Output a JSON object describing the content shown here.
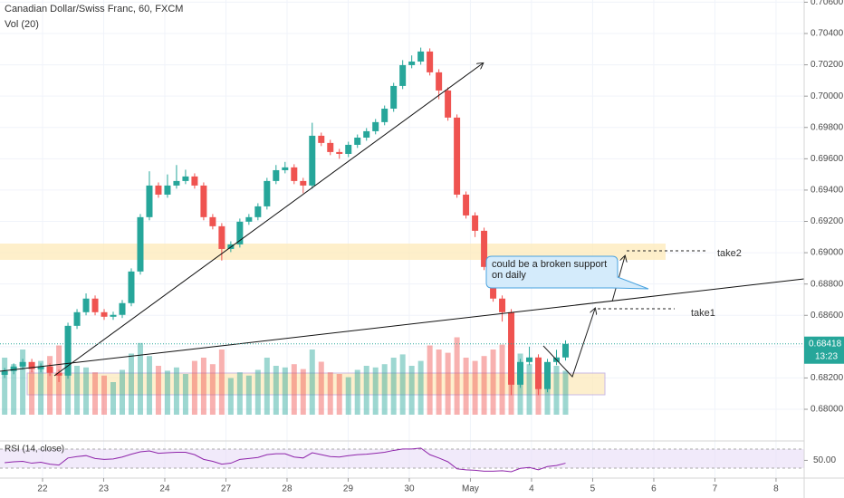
{
  "chart_data": {
    "type": "candlestick",
    "title": "Canadian Dollar/Swiss Franc, 60, FXCM",
    "volume_label": "Vol (20)",
    "rsi_label": "RSI (14, close)",
    "annotation": "could be a broken support on daily",
    "targets": [
      "take1",
      "take2"
    ],
    "last_price": {
      "value": 0.68418,
      "label": "0.68418"
    },
    "countdown": "13:23",
    "up_color": "#26a69a",
    "down_color": "#ef5350",
    "rsi_color": "#8e24aa",
    "grid": true,
    "xlim": [
      0.304,
      13.46
    ],
    "xticks": [
      {
        "value": 1,
        "label": "22"
      },
      {
        "value": 2,
        "label": "23"
      },
      {
        "value": 3,
        "label": "24"
      },
      {
        "value": 4,
        "label": "27"
      },
      {
        "value": 5,
        "label": "28"
      },
      {
        "value": 6,
        "label": "29"
      },
      {
        "value": 7,
        "label": "30"
      },
      {
        "value": 8,
        "label": "May"
      },
      {
        "value": 9,
        "label": "4"
      },
      {
        "value": 10,
        "label": "5"
      },
      {
        "value": 11,
        "label": "6"
      },
      {
        "value": 12,
        "label": "7"
      },
      {
        "value": 13,
        "label": "8"
      }
    ],
    "ylim": [
      0.67896,
      0.70614
    ],
    "yticks": [
      {
        "value": 0.706,
        "label": "0.70600"
      },
      {
        "value": 0.704,
        "label": "0.70400"
      },
      {
        "value": 0.702,
        "label": "0.70200"
      },
      {
        "value": 0.7,
        "label": "0.70000"
      },
      {
        "value": 0.698,
        "label": "0.69800"
      },
      {
        "value": 0.696,
        "label": "0.69600"
      },
      {
        "value": 0.694,
        "label": "0.69400"
      },
      {
        "value": 0.692,
        "label": "0.69200"
      },
      {
        "value": 0.69,
        "label": "0.69000"
      },
      {
        "value": 0.688,
        "label": "0.68800"
      },
      {
        "value": 0.686,
        "label": "0.68600"
      },
      {
        "value": 0.684,
        "label": "0.68400"
      },
      {
        "value": 0.682,
        "label": "0.68200"
      },
      {
        "value": 0.68,
        "label": "0.68000"
      }
    ],
    "vol_ylim": [
      0,
      100
    ],
    "rsi_ylim": [
      24,
      91
    ],
    "rsi_yticks": [
      {
        "value": 50,
        "label": "50.00"
      }
    ],
    "x": [
      0.38,
      0.528,
      0.676,
      0.824,
      0.972,
      1.12,
      1.268,
      1.416,
      1.564,
      1.712,
      1.86,
      2.008,
      2.156,
      2.304,
      2.452,
      2.6,
      2.748,
      2.896,
      3.044,
      3.192,
      3.34,
      3.488,
      3.636,
      3.784,
      3.932,
      4.08,
      4.228,
      4.376,
      4.524,
      4.672,
      4.82,
      4.968,
      5.116,
      5.264,
      5.412,
      5.56,
      5.708,
      5.856,
      6.004,
      6.152,
      6.3,
      6.448,
      6.596,
      6.744,
      6.892,
      7.04,
      7.188,
      7.336,
      7.484,
      7.632,
      7.78,
      7.928,
      8.076,
      8.224,
      8.372,
      8.52,
      8.668,
      8.816,
      8.964,
      9.112,
      9.26,
      9.408,
      9.556
    ],
    "open": [
      0.6822,
      0.68244,
      0.68273,
      0.68302,
      0.68256,
      0.68273,
      0.68233,
      0.68215,
      0.68533,
      0.6862,
      0.68707,
      0.6862,
      0.68591,
      0.68603,
      0.68678,
      0.6888,
      0.69227,
      0.69429,
      0.69371,
      0.69429,
      0.69458,
      0.69487,
      0.69429,
      0.69227,
      0.69169,
      0.69024,
      0.69053,
      0.69198,
      0.69227,
      0.69296,
      0.69458,
      0.69527,
      0.69545,
      0.69458,
      0.69429,
      0.69747,
      0.69701,
      0.69643,
      0.69631,
      0.69689,
      0.69735,
      0.69776,
      0.69834,
      0.6992,
      0.70065,
      0.70198,
      0.70221,
      0.70285,
      0.70152,
      0.70036,
      0.69863,
      0.69371,
      0.69238,
      0.6914,
      0.68909,
      0.68707,
      0.6862,
      0.68157,
      0.68302,
      0.68331,
      0.68129,
      0.68302,
      0.68331
    ],
    "high": [
      0.68264,
      0.68293,
      0.68322,
      0.68322,
      0.68293,
      0.68293,
      0.68253,
      0.68553,
      0.6864,
      0.6874,
      0.68727,
      0.6864,
      0.68623,
      0.68698,
      0.689,
      0.69247,
      0.6952,
      0.69449,
      0.695,
      0.6956,
      0.6953,
      0.69507,
      0.69449,
      0.69247,
      0.69189,
      0.69073,
      0.69218,
      0.69247,
      0.69316,
      0.69478,
      0.6956,
      0.6958,
      0.69565,
      0.69478,
      0.6983,
      0.69767,
      0.69721,
      0.69663,
      0.69709,
      0.69755,
      0.69796,
      0.69854,
      0.6994,
      0.70085,
      0.7023,
      0.7026,
      0.7031,
      0.70305,
      0.70172,
      0.70056,
      0.69883,
      0.69391,
      0.69258,
      0.6916,
      0.68929,
      0.68727,
      0.6864,
      0.68322,
      0.684,
      0.68351,
      0.68322,
      0.6838,
      0.6844
    ],
    "low": [
      0.682,
      0.68224,
      0.68253,
      0.68236,
      0.68236,
      0.68213,
      0.68174,
      0.68195,
      0.68513,
      0.686,
      0.686,
      0.68571,
      0.68571,
      0.68583,
      0.68658,
      0.6886,
      0.69207,
      0.69351,
      0.69351,
      0.69409,
      0.69438,
      0.69409,
      0.69207,
      0.69149,
      0.6895,
      0.69004,
      0.69033,
      0.69178,
      0.69207,
      0.69276,
      0.69438,
      0.69507,
      0.69438,
      0.6938,
      0.69409,
      0.69681,
      0.69623,
      0.696,
      0.69611,
      0.69669,
      0.69715,
      0.69756,
      0.69814,
      0.699,
      0.70045,
      0.70178,
      0.70201,
      0.70132,
      0.6998,
      0.69843,
      0.69351,
      0.69218,
      0.691,
      0.68889,
      0.68687,
      0.6856,
      0.6809,
      0.68137,
      0.68282,
      0.6809,
      0.68109,
      0.68282,
      0.68311
    ],
    "close": [
      0.68244,
      0.68273,
      0.68302,
      0.68256,
      0.68273,
      0.68233,
      0.68215,
      0.68533,
      0.6862,
      0.68707,
      0.6862,
      0.68591,
      0.68603,
      0.68678,
      0.6888,
      0.69227,
      0.69429,
      0.69371,
      0.69429,
      0.69458,
      0.69487,
      0.69429,
      0.69227,
      0.69169,
      0.69024,
      0.69053,
      0.69198,
      0.69227,
      0.69296,
      0.69458,
      0.69527,
      0.69545,
      0.69458,
      0.69429,
      0.69747,
      0.69701,
      0.69643,
      0.69631,
      0.69689,
      0.69735,
      0.69776,
      0.69834,
      0.6992,
      0.70065,
      0.70198,
      0.70221,
      0.70285,
      0.70152,
      0.70036,
      0.69863,
      0.69371,
      0.69238,
      0.6914,
      0.68909,
      0.68707,
      0.6862,
      0.68157,
      0.68302,
      0.68331,
      0.68129,
      0.68302,
      0.68331,
      0.68418
    ],
    "volume": [
      70,
      62,
      80,
      55,
      66,
      72,
      85,
      90,
      60,
      58,
      52,
      48,
      40,
      55,
      75,
      88,
      72,
      60,
      54,
      58,
      50,
      66,
      70,
      62,
      80,
      45,
      52,
      48,
      55,
      70,
      60,
      58,
      62,
      56,
      80,
      65,
      52,
      50,
      46,
      55,
      60,
      58,
      62,
      70,
      74,
      60,
      66,
      85,
      80,
      76,
      95,
      70,
      66,
      72,
      80,
      86,
      98,
      75,
      62,
      70,
      58,
      60,
      54
    ],
    "rsi": [
      45,
      47,
      48,
      44,
      46,
      42,
      40,
      55,
      58,
      60,
      54,
      52,
      53,
      57,
      63,
      68,
      70,
      65,
      66,
      67,
      67,
      62,
      52,
      48,
      42,
      44,
      52,
      54,
      56,
      62,
      64,
      64,
      57,
      55,
      66,
      62,
      58,
      57,
      60,
      62,
      63,
      65,
      67,
      71,
      74,
      74,
      76,
      62,
      55,
      47,
      32,
      30,
      29,
      27,
      27,
      28,
      26,
      33,
      35,
      30,
      37,
      39,
      44
    ]
  }
}
